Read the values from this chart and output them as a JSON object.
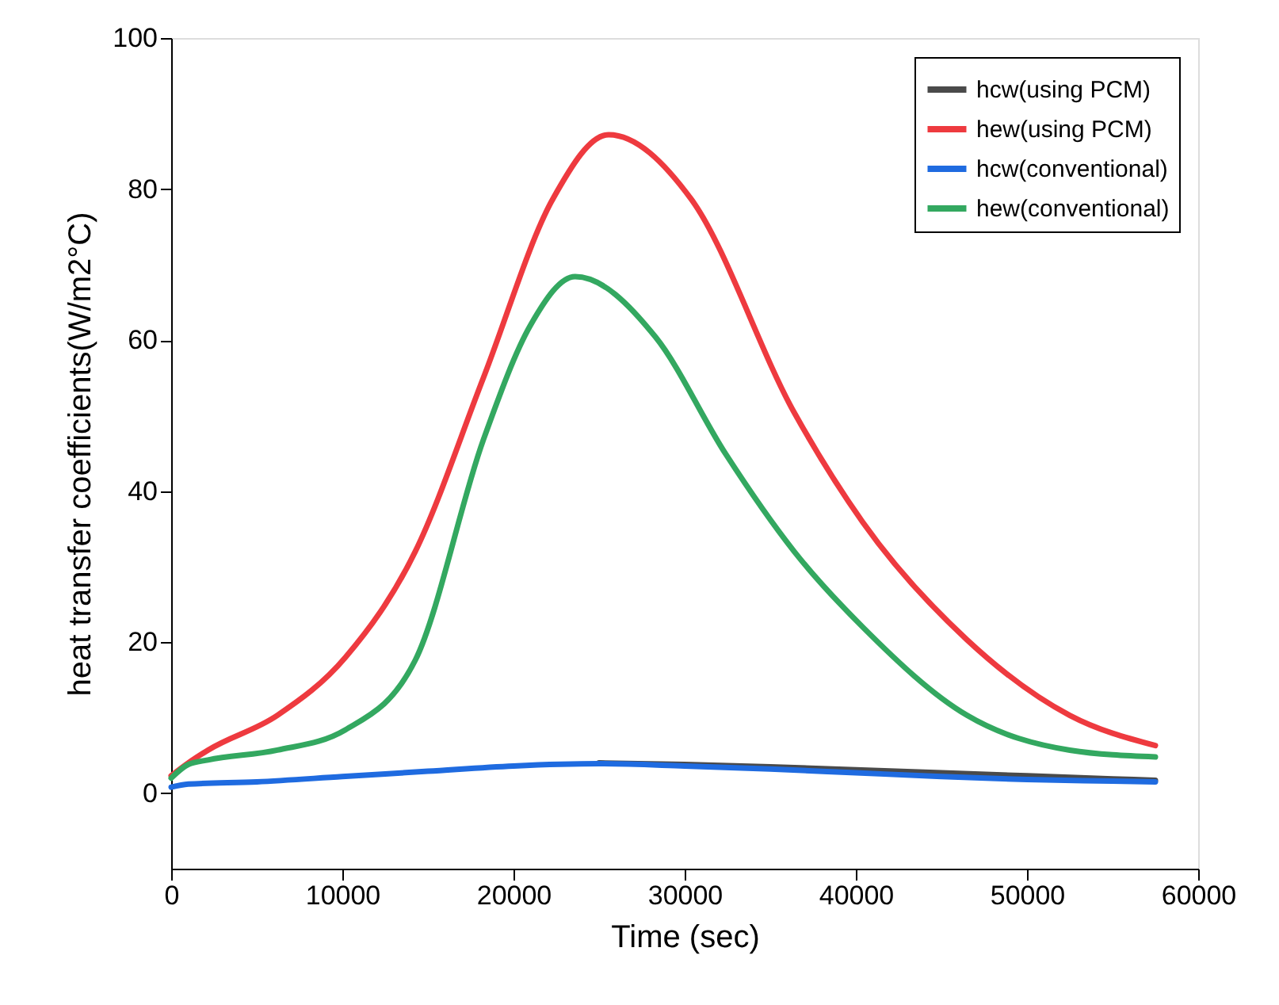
{
  "chart_data": {
    "type": "line",
    "xlabel": "Time (sec)",
    "ylabel": "heat transfer coefficients(W/m2°C)",
    "xlim": [
      0,
      60000
    ],
    "ylim": [
      -10,
      100
    ],
    "xticks": [
      0,
      10000,
      20000,
      30000,
      40000,
      50000,
      60000
    ],
    "yticks": [
      0,
      20,
      40,
      60,
      80,
      100
    ],
    "grid": false,
    "legend": "top right",
    "marker": "none",
    "line_style": "solid",
    "series": [
      {
        "name": "hcw(using PCM)",
        "color": "#4a4a4a",
        "x": [
          25000,
          30000,
          35000,
          40000,
          45000,
          50000,
          55000,
          57500
        ],
        "values": [
          4.0,
          3.8,
          3.5,
          3.1,
          2.7,
          2.3,
          1.9,
          1.7
        ]
      },
      {
        "name": "hew(using PCM)",
        "color": "#ee3a3f",
        "x": [
          0,
          1000,
          2150,
          6200,
          10185,
          14260,
          18240,
          22300,
          25560,
          30370,
          36400,
          40400,
          46500,
          52500,
          57500
        ],
        "values": [
          2.3,
          4.0,
          5.7,
          10.3,
          18,
          32,
          55,
          78.7,
          87.2,
          78.7,
          50.4,
          35.9,
          20.3,
          10.3,
          6.3
        ]
      },
      {
        "name": "hcw(conventional)",
        "color": "#1f6be0",
        "x": [
          0,
          1000,
          5000,
          10000,
          15000,
          20000,
          25000,
          30000,
          35000,
          40000,
          45000,
          50000,
          55000,
          57500
        ],
        "values": [
          0.8,
          1.2,
          1.5,
          2.2,
          2.9,
          3.6,
          3.9,
          3.6,
          3.2,
          2.7,
          2.2,
          1.8,
          1.6,
          1.5
        ]
      },
      {
        "name": "hew(conventional)",
        "color": "#33a860",
        "x": [
          0,
          1000,
          2150,
          6200,
          10185,
          14260,
          18240,
          21000,
          23600,
          28300,
          32400,
          36400,
          40400,
          46500,
          52500,
          57500
        ],
        "values": [
          2.0,
          3.8,
          4.4,
          5.7,
          8.4,
          17.6,
          46.8,
          62,
          68.4,
          60.4,
          44.9,
          32,
          22,
          10.3,
          5.7,
          4.8
        ]
      }
    ]
  }
}
